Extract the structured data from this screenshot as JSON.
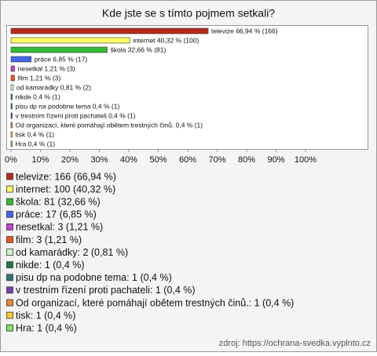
{
  "chart_data": {
    "type": "bar",
    "orientation": "horizontal",
    "title": "Kde jste se s tímto pojmem setkali?",
    "categories": [
      "televize",
      "internet",
      "škola",
      "práce",
      "nesetkal",
      "film",
      "od kamarádky",
      "nikde",
      "pisu dp na podobne tema",
      "v trestním řízení proti pachateli",
      "Od organizací, které pomáhají obětem trestných činů.",
      "tisk",
      "Hra"
    ],
    "values": [
      66.94,
      40.32,
      32.66,
      6.85,
      1.21,
      1.21,
      0.81,
      0.4,
      0.4,
      0.4,
      0.4,
      0.4,
      0.4
    ],
    "value_labels": [
      "televize 66,94 % (166)",
      "internet 40,32 % (100)",
      "škola 32,66 % (81)",
      "práce 6,85 % (17)",
      "nesetkal 1,21 % (3)",
      "film 1,21 % (3)",
      "od kamarádky 0,81 % (2)",
      "nikde 0,4 % (1)",
      "pisu dp na podobne tema 0,4 % (1)",
      "v trestním řízení proti pachateli 0,4 % (1)",
      "Od organizací, které pomáhají obětem trestných činů. 0,4 % (1)",
      "tisk 0,4 % (1)",
      "Hra 0,4 % (1)"
    ],
    "legend_labels": [
      "televize: 166 (66,94 %)",
      "internet: 100 (40,32 %)",
      "škola: 81 (32,66 %)",
      "práce: 17 (6,85 %)",
      "nesetkal: 3 (1,21 %)",
      "film: 3 (1,21 %)",
      "od kamarádky: 2 (0,81 %)",
      "nikde: 1 (0,4 %)",
      "pisu dp na podobne tema: 1 (0,4 %)",
      "v trestním řízení proti pachateli: 1 (0,4 %)",
      "Od organizací, které pomáhají obětem trestných činů.: 1 (0,4 %)",
      "tisk: 1 (0,4 %)",
      "Hra: 1 (0,4 %)"
    ],
    "colors": [
      "#b8281e",
      "#ffff66",
      "#33bb33",
      "#4466ee",
      "#bb44cc",
      "#ee5522",
      "#ccffcc",
      "#227744",
      "#337777",
      "#7744aa",
      "#ee8833",
      "#ffcc33",
      "#88dd66"
    ],
    "xlim": [
      0,
      120
    ],
    "xticks": [
      {
        "value": 0,
        "label": "0%"
      },
      {
        "value": 10,
        "label": "10%"
      },
      {
        "value": 20,
        "label": "20%"
      },
      {
        "value": 30,
        "label": "30%"
      },
      {
        "value": 40,
        "label": "40%"
      },
      {
        "value": 50,
        "label": "50%"
      },
      {
        "value": 60,
        "label": "60%"
      },
      {
        "value": 70,
        "label": "70%"
      },
      {
        "value": 80,
        "label": "80%"
      },
      {
        "value": 90,
        "label": "90%"
      },
      {
        "value": 100,
        "label": "100%"
      }
    ],
    "source": "zdroj: https://ochrana-svedka.vyplnto.cz"
  }
}
